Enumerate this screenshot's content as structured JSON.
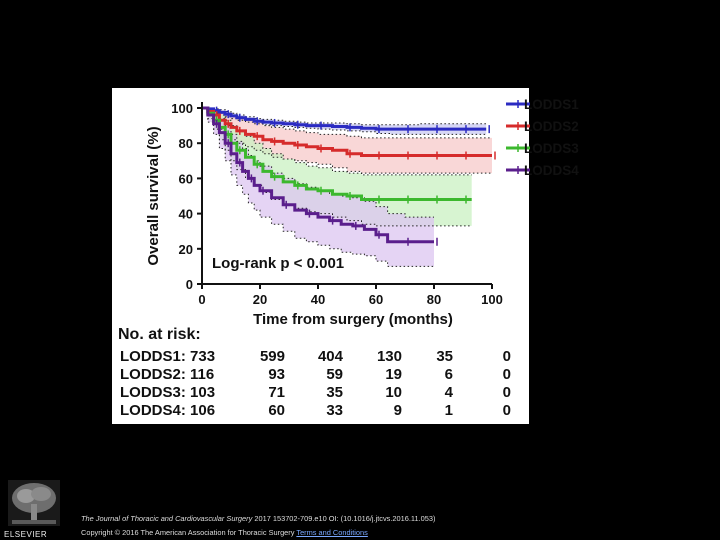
{
  "chart_data": {
    "type": "line",
    "subtype": "kaplan-meier",
    "xlabel": "Time from surgery (months)",
    "ylabel": "Overall survival (%)",
    "xlim": [
      0,
      100
    ],
    "ylim": [
      0,
      100
    ],
    "xticks": [
      0,
      20,
      40,
      60,
      80,
      100
    ],
    "yticks": [
      0,
      20,
      40,
      60,
      80,
      100
    ],
    "annotation": "Log-rank p < 0.001",
    "legend_position": "top-right",
    "series": [
      {
        "name": "LODDS1",
        "color": "#2b2bc2",
        "band_color": "#c9c9f2",
        "x": [
          0,
          2,
          4,
          6,
          8,
          10,
          12,
          15,
          18,
          21,
          24,
          28,
          32,
          36,
          40,
          45,
          50,
          55,
          60,
          65,
          70,
          75,
          80,
          85,
          90,
          95,
          98
        ],
        "y": [
          100,
          99.5,
          98.5,
          97.5,
          96.5,
          95.5,
          94.5,
          93.5,
          92.5,
          92,
          91.5,
          91,
          90.5,
          90,
          90,
          89.5,
          89,
          88.5,
          88,
          88,
          88,
          88,
          88,
          88,
          88,
          88,
          88
        ],
        "lower": [
          100,
          99,
          97.5,
          96,
          95,
          94,
          93,
          92,
          91,
          90.5,
          90,
          89.5,
          89,
          88.5,
          88,
          87.5,
          87,
          86.5,
          85.5,
          85,
          85,
          85,
          85,
          85,
          85,
          85,
          85
        ],
        "upper": [
          100,
          100,
          99.5,
          99,
          98,
          97,
          96,
          95,
          94,
          93.5,
          93,
          92.5,
          92,
          91.5,
          91.5,
          91.5,
          91,
          90.5,
          90.5,
          90.5,
          90.5,
          91,
          91,
          91,
          91,
          91,
          91
        ]
      },
      {
        "name": "LODDS2",
        "color": "#d62b2b",
        "band_color": "#f7c9c9",
        "x": [
          0,
          2,
          4,
          6,
          8,
          10,
          12,
          15,
          18,
          21,
          24,
          28,
          32,
          36,
          40,
          45,
          50,
          55,
          60,
          65,
          70,
          75,
          80,
          85,
          90,
          95,
          100
        ],
        "y": [
          100,
          98,
          96,
          93,
          91,
          89,
          87,
          85,
          84,
          82,
          81,
          80,
          79,
          78,
          77,
          76,
          74,
          73,
          73,
          73,
          73,
          73,
          73,
          73,
          73,
          73,
          73
        ],
        "lower": [
          100,
          96,
          92,
          88,
          85,
          82,
          80,
          78,
          76,
          74,
          72,
          71,
          70,
          69,
          68,
          66,
          64,
          63,
          63,
          63,
          63,
          63,
          63,
          63,
          63,
          63,
          63
        ],
        "upper": [
          100,
          100,
          99,
          98,
          97,
          96,
          95,
          93,
          92,
          90,
          89,
          88,
          87,
          86,
          85,
          85,
          84,
          83,
          83,
          83,
          83,
          83,
          83,
          83,
          83,
          83,
          83
        ]
      },
      {
        "name": "LODDS3",
        "color": "#3cb82e",
        "band_color": "#c9f0c2",
        "x": [
          0,
          2,
          4,
          6,
          8,
          10,
          12,
          15,
          18,
          21,
          24,
          28,
          32,
          36,
          40,
          45,
          50,
          55,
          60,
          65,
          70,
          75,
          80,
          85,
          90,
          93
        ],
        "y": [
          100,
          97,
          93,
          89,
          85,
          80,
          76,
          72,
          68,
          64,
          61,
          58,
          56,
          54,
          53,
          51,
          50,
          48,
          48,
          48,
          48,
          48,
          48,
          48,
          48,
          48
        ],
        "lower": [
          100,
          94,
          88,
          82,
          76,
          70,
          65,
          60,
          56,
          52,
          48,
          45,
          43,
          41,
          40,
          38,
          36,
          34,
          33,
          33,
          33,
          33,
          33,
          33,
          33,
          33
        ],
        "upper": [
          100,
          100,
          98,
          96,
          93,
          90,
          87,
          84,
          80,
          77,
          74,
          71,
          69,
          67,
          66,
          64,
          63,
          62,
          62,
          62,
          62,
          62,
          62,
          62,
          62,
          62
        ]
      },
      {
        "name": "LODDS4",
        "color": "#5a1e8c",
        "band_color": "#dcc6f0",
        "x": [
          0,
          2,
          4,
          6,
          8,
          10,
          12,
          14,
          16,
          18,
          20,
          24,
          28,
          32,
          36,
          40,
          44,
          48,
          52,
          56,
          60,
          64,
          70,
          75,
          80
        ],
        "y": [
          100,
          96,
          91,
          86,
          80,
          74,
          69,
          64,
          60,
          56,
          53,
          49,
          45,
          42,
          40,
          38,
          36,
          34,
          33,
          31,
          28,
          24,
          24,
          24,
          24
        ],
        "lower": [
          100,
          92,
          85,
          77,
          70,
          62,
          56,
          51,
          46,
          42,
          38,
          34,
          30,
          26,
          24,
          22,
          20,
          18,
          17,
          16,
          13,
          10,
          10,
          10,
          10
        ],
        "upper": [
          100,
          100,
          97,
          94,
          90,
          85,
          81,
          77,
          73,
          70,
          67,
          63,
          60,
          57,
          55,
          53,
          51,
          50,
          49,
          47,
          44,
          40,
          38,
          38,
          38
        ]
      }
    ],
    "risk_table": {
      "title": "No. at risk:",
      "rows": [
        {
          "label": "LODDS1: 733",
          "values": [
            "599",
            "404",
            "130",
            "35",
            "0"
          ]
        },
        {
          "label": "LODDS2: 116",
          "values": [
            "93",
            "59",
            "19",
            "6",
            "0"
          ]
        },
        {
          "label": "LODDS3: 103",
          "values": [
            "71",
            "35",
            "10",
            "4",
            "0"
          ]
        },
        {
          "label": "LODDS4: 106",
          "values": [
            "60",
            "33",
            "9",
            "1",
            "0"
          ]
        }
      ]
    }
  },
  "footer": {
    "journal": "The Journal of Thoracic and Cardiovascular Surgery",
    "citation": "2017 153702-709.e10 OI: (10.1016/j.jtcvs.2016.11.053)",
    "copyright": "Copyright © 2016 The American Association for Thoracic Surgery",
    "terms_link": "Terms and Conditions",
    "publisher": "ELSEVIER"
  }
}
